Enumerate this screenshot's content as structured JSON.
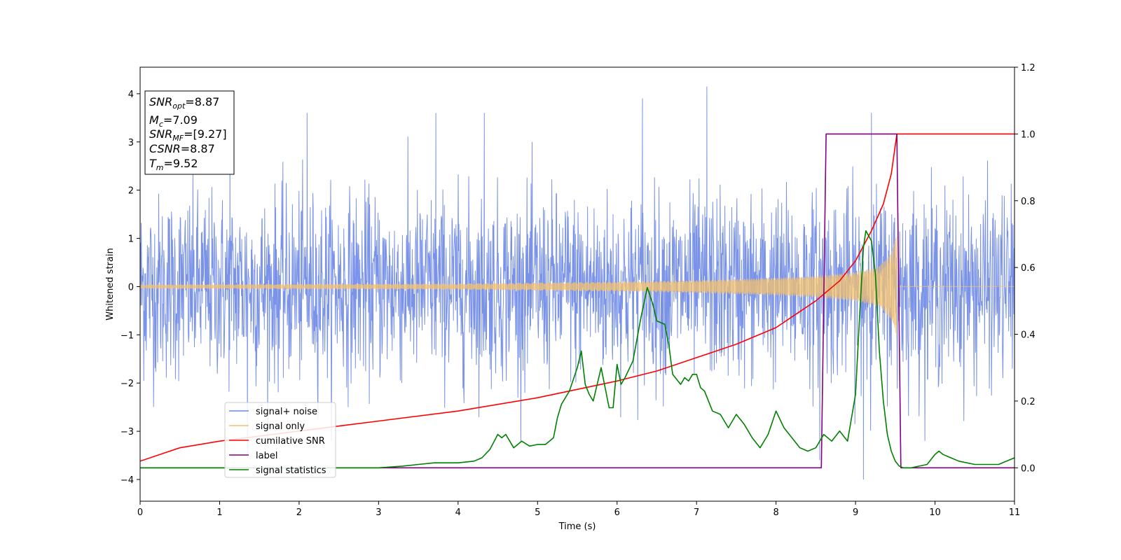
{
  "chart_data": {
    "type": "line",
    "xlabel": "Time (s)",
    "ylabel": "Whitened strain",
    "xlim": [
      0,
      11
    ],
    "ylim_left": [
      -4.45,
      4.55
    ],
    "ylim_right": [
      -0.1,
      1.2
    ],
    "x_ticks": [
      0,
      1,
      2,
      3,
      4,
      5,
      6,
      7,
      8,
      9,
      10,
      11
    ],
    "y_ticks_left": [
      -4,
      -3,
      -2,
      -1,
      0,
      1,
      2,
      3,
      4
    ],
    "y_ticks_left_labels": [
      "−4",
      "−3",
      "−2",
      "−1",
      "0",
      "1",
      "2",
      "3",
      "4"
    ],
    "y_ticks_right": [
      0.0,
      0.2,
      0.4,
      0.6,
      0.8,
      1.0,
      1.2
    ],
    "y_ticks_right_labels": [
      "0.0",
      "0.2",
      "0.4",
      "0.6",
      "0.8",
      "1.0",
      "1.2"
    ],
    "grid": false,
    "legend_position": "lower-left",
    "info_box": {
      "snr_opt": "=8.87",
      "mc": "=7.09",
      "snr_mf": "=[9.27]",
      "csnr": "=8.87",
      "tm": "=9.52"
    },
    "series": [
      {
        "name": "signal+ noise",
        "axis": "left",
        "color": "#6b87e6",
        "noise_sigma": 0.95,
        "spikes": [
          [
            1.13,
            3.55
          ],
          [
            1.35,
            -3.55
          ],
          [
            2.1,
            3.6
          ],
          [
            3.72,
            3.6
          ],
          [
            4.33,
            3.6
          ],
          [
            6.32,
            3.9
          ],
          [
            7.13,
            4.15
          ],
          [
            9.1,
            -4.0
          ],
          [
            9.2,
            3.6
          ],
          [
            8.55,
            -3.6
          ]
        ]
      },
      {
        "name": "signal only",
        "axis": "left",
        "color": "#f5c16b",
        "merger_time": 9.52,
        "envelope": [
          [
            0,
            0.04
          ],
          [
            2,
            0.05
          ],
          [
            4,
            0.06
          ],
          [
            6,
            0.1
          ],
          [
            7,
            0.13
          ],
          [
            8,
            0.18
          ],
          [
            8.5,
            0.22
          ],
          [
            9,
            0.3
          ],
          [
            9.3,
            0.42
          ],
          [
            9.45,
            0.7
          ],
          [
            9.52,
            1.1
          ]
        ]
      },
      {
        "name": "cumilative SNR",
        "axis": "right",
        "color": "#ff0000",
        "x": [
          0,
          0.5,
          1,
          2,
          3,
          4,
          5,
          6,
          6.5,
          7,
          7.5,
          8,
          8.5,
          8.8,
          9.0,
          9.2,
          9.35,
          9.45,
          9.52,
          11
        ],
        "y": [
          0.02,
          0.06,
          0.08,
          0.11,
          0.14,
          0.17,
          0.21,
          0.26,
          0.29,
          0.33,
          0.37,
          0.42,
          0.5,
          0.56,
          0.62,
          0.71,
          0.79,
          0.88,
          1.0,
          1.0
        ]
      },
      {
        "name": "label",
        "axis": "right",
        "color": "#800080",
        "x": [
          0,
          8.57,
          8.63,
          9.52,
          9.57,
          11
        ],
        "y": [
          0,
          0,
          1,
          1,
          0,
          0
        ]
      },
      {
        "name": "signal statistics",
        "axis": "right",
        "color": "#008000",
        "x": [
          0,
          1,
          2,
          3,
          3.3,
          3.5,
          3.7,
          4.0,
          4.2,
          4.3,
          4.4,
          4.5,
          4.55,
          4.6,
          4.65,
          4.7,
          4.8,
          4.9,
          5.0,
          5.1,
          5.2,
          5.25,
          5.3,
          5.4,
          5.5,
          5.55,
          5.6,
          5.65,
          5.7,
          5.8,
          5.9,
          5.95,
          6.0,
          6.05,
          6.1,
          6.2,
          6.3,
          6.38,
          6.45,
          6.5,
          6.6,
          6.65,
          6.7,
          6.8,
          6.85,
          6.9,
          6.95,
          7.0,
          7.05,
          7.1,
          7.2,
          7.3,
          7.4,
          7.5,
          7.6,
          7.7,
          7.8,
          7.9,
          8.0,
          8.1,
          8.2,
          8.3,
          8.4,
          8.5,
          8.6,
          8.7,
          8.8,
          8.9,
          9.0,
          9.05,
          9.1,
          9.13,
          9.2,
          9.25,
          9.3,
          9.35,
          9.4,
          9.45,
          9.5,
          9.55,
          9.6,
          9.7,
          9.8,
          9.9,
          10.0,
          10.05,
          10.1,
          10.2,
          10.3,
          10.5,
          10.8,
          11
        ],
        "y": [
          0.0,
          0.0,
          0.0,
          0.0,
          0.005,
          0.01,
          0.015,
          0.015,
          0.02,
          0.03,
          0.055,
          0.1,
          0.09,
          0.1,
          0.08,
          0.06,
          0.08,
          0.065,
          0.07,
          0.07,
          0.09,
          0.15,
          0.19,
          0.23,
          0.3,
          0.35,
          0.25,
          0.22,
          0.2,
          0.3,
          0.18,
          0.18,
          0.31,
          0.25,
          0.27,
          0.32,
          0.45,
          0.54,
          0.49,
          0.44,
          0.43,
          0.37,
          0.28,
          0.25,
          0.27,
          0.26,
          0.28,
          0.28,
          0.24,
          0.23,
          0.17,
          0.16,
          0.12,
          0.16,
          0.13,
          0.09,
          0.06,
          0.1,
          0.17,
          0.12,
          0.09,
          0.06,
          0.05,
          0.06,
          0.1,
          0.08,
          0.11,
          0.08,
          0.22,
          0.45,
          0.66,
          0.71,
          0.68,
          0.58,
          0.35,
          0.2,
          0.1,
          0.05,
          0.02,
          0.005,
          0.0,
          0.0,
          0.005,
          0.01,
          0.04,
          0.05,
          0.04,
          0.03,
          0.02,
          0.01,
          0.01,
          0.03
        ]
      }
    ]
  }
}
